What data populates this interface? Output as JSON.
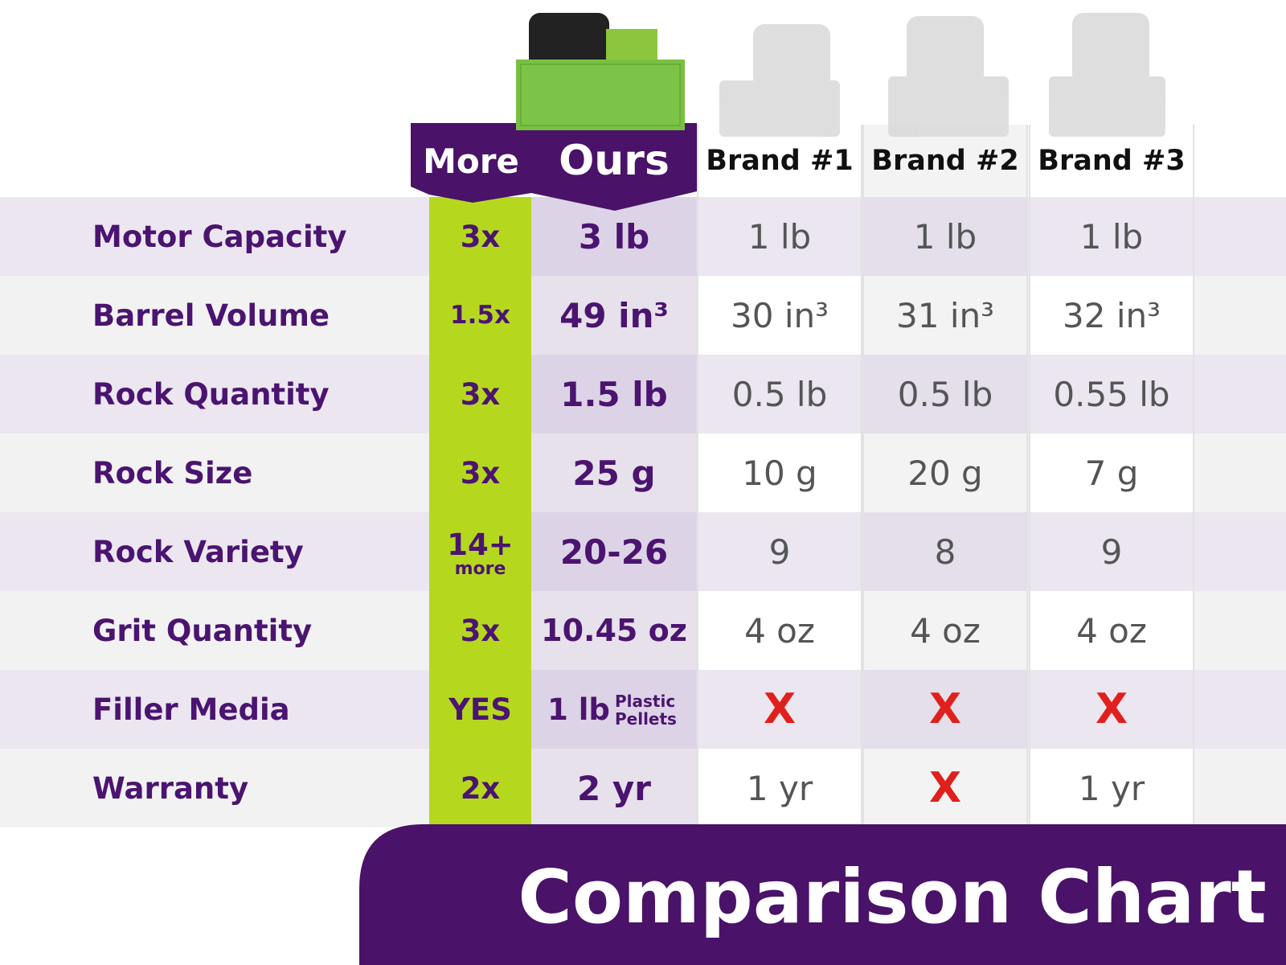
{
  "header": {
    "more": "More",
    "ours": "Ours",
    "brands": [
      "Brand #1",
      "Brand #2",
      "Brand #3"
    ]
  },
  "table": {
    "rows": [
      {
        "label": "Motor Capacity",
        "more": "3x",
        "ours": "3 lb",
        "brands": [
          "1 lb",
          "1 lb",
          "1 lb"
        ]
      },
      {
        "label": "Barrel Volume",
        "more": "1.5x",
        "ours": "49 in³",
        "brands": [
          "30 in³",
          "31 in³",
          "32 in³"
        ]
      },
      {
        "label": "Rock Quantity",
        "more": "3x",
        "ours": "1.5 lb",
        "brands": [
          "0.5 lb",
          "0.5 lb",
          "0.55 lb"
        ]
      },
      {
        "label": "Rock Size",
        "more": "3x",
        "ours": "25 g",
        "brands": [
          "10 g",
          "20 g",
          "7 g"
        ]
      },
      {
        "label": "Rock Variety",
        "more": "14+",
        "more_note": "more",
        "ours": "20-26",
        "brands": [
          "9",
          "8",
          "9"
        ]
      },
      {
        "label": "Grit Quantity",
        "more": "3x",
        "ours": "10.45 oz",
        "brands": [
          "4 oz",
          "4 oz",
          "4 oz"
        ]
      },
      {
        "label": "Filler Media",
        "more": "YES",
        "ours": "1 lb",
        "ours_note": [
          "Plastic",
          "Pellets"
        ],
        "brands": [
          "X",
          "X",
          "X"
        ]
      },
      {
        "label": "Warranty",
        "more": "2x",
        "ours": "2 yr",
        "brands": [
          "1 yr",
          "X",
          "1 yr"
        ]
      }
    ]
  },
  "footer": {
    "title": "Comparison Chart"
  }
}
